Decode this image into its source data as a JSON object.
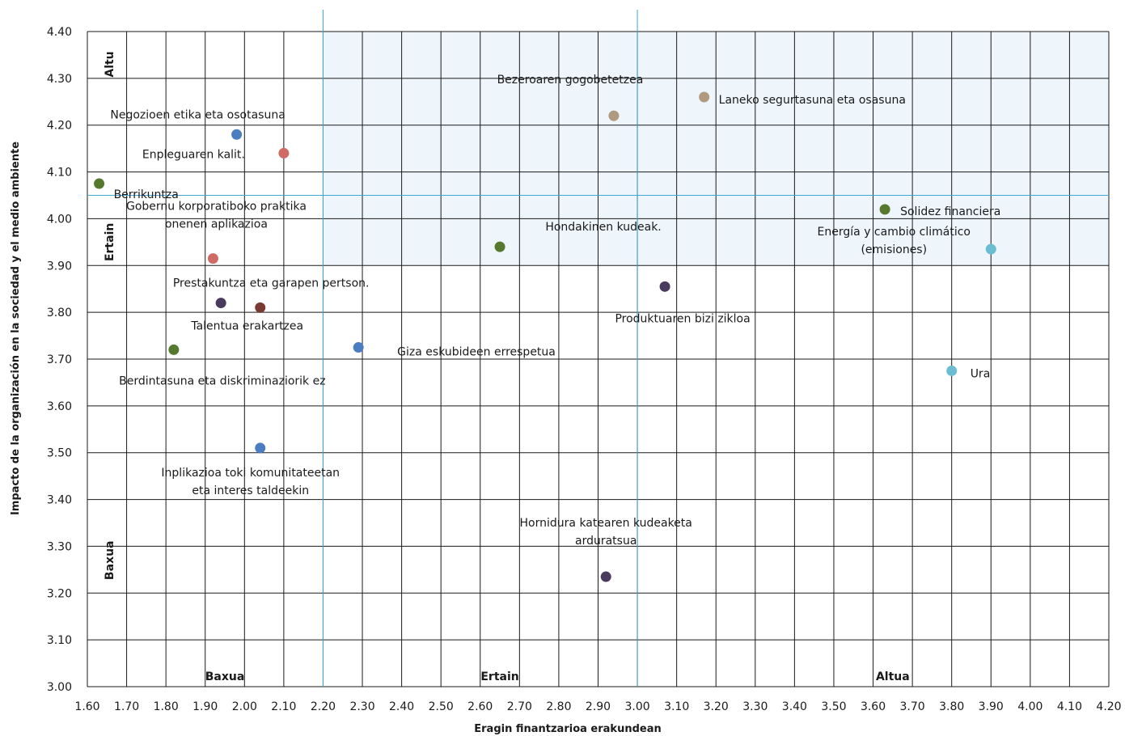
{
  "chart_data": {
    "type": "scatter",
    "xlabel": "Eragin finantzarioa erakundean",
    "ylabel": "Impacto de la organización en la sociedad y el medio ambiente",
    "xlim": [
      1.6,
      4.2
    ],
    "ylim": [
      3.0,
      4.4
    ],
    "x_ticks": [
      "1.60",
      "1.70",
      "1.80",
      "1.90",
      "2.00",
      "2.10",
      "2.20",
      "2.30",
      "2.40",
      "2.50",
      "2.60",
      "2.70",
      "2.80",
      "2.90",
      "3.00",
      "3.10",
      "3.20",
      "3.30",
      "3.40",
      "3.50",
      "3.60",
      "3.70",
      "3.80",
      "3.90",
      "4.00",
      "4.10",
      "4.20"
    ],
    "y_ticks": [
      "3.00",
      "3.10",
      "3.20",
      "3.30",
      "3.40",
      "3.50",
      "3.60",
      "3.70",
      "3.80",
      "3.90",
      "4.00",
      "4.10",
      "4.20",
      "4.30",
      "4.40"
    ],
    "grid": true,
    "x_dividers": [
      2.2,
      3.0
    ],
    "y_divider": 4.05,
    "highlight_region": {
      "x": [
        2.2,
        4.2
      ],
      "y": [
        3.9,
        4.4
      ],
      "color": "#eef5fb"
    },
    "x_zones": [
      {
        "label": "Baxua",
        "x": 1.95
      },
      {
        "label": "Ertain",
        "x": 2.65
      },
      {
        "label": "Altua",
        "x": 3.65
      }
    ],
    "y_zones": [
      {
        "label": "Altu",
        "y": 4.33
      },
      {
        "label": "Ertain",
        "y": 3.95
      },
      {
        "label": "Baxua",
        "y": 3.27
      }
    ],
    "points": [
      {
        "x": 1.98,
        "y": 4.18,
        "color": "#4a7ec0",
        "label_lines": [
          "Negozioen etika eta osotasuna"
        ]
      },
      {
        "x": 2.1,
        "y": 4.14,
        "color": "#d06a64",
        "label_lines": [
          "Enpleguaren kalit."
        ]
      },
      {
        "x": 1.63,
        "y": 4.075,
        "color": "#557a2e",
        "label_lines": [
          "Berrikuntza"
        ]
      },
      {
        "x": 1.92,
        "y": 3.915,
        "color": "#d06a64",
        "label_lines": [
          "Gobernu korporatiboko praktika",
          "onenen aplikazioa"
        ]
      },
      {
        "x": 1.94,
        "y": 3.82,
        "color": "#4a3a5e",
        "label_lines": [
          "Prestakuntza eta garapen pertson."
        ]
      },
      {
        "x": 2.04,
        "y": 3.81,
        "color": "#7a3a34",
        "label_lines": [
          "Talentua erakartzea"
        ]
      },
      {
        "x": 1.82,
        "y": 3.72,
        "color": "#557a2e",
        "label_lines": [
          "Berdintasuna eta diskriminaziorik ez"
        ]
      },
      {
        "x": 2.29,
        "y": 3.725,
        "color": "#4a7ec0",
        "label_lines": [
          "Giza eskubideen errespetua"
        ]
      },
      {
        "x": 2.04,
        "y": 3.51,
        "color": "#4a7ec0",
        "label_lines": [
          "Inplikazioa toki komunitateetan",
          "eta interes taldeekin"
        ]
      },
      {
        "x": 2.94,
        "y": 4.22,
        "color": "#b09a80",
        "label_lines": [
          "Bezeroaren gogobetetzea"
        ]
      },
      {
        "x": 3.17,
        "y": 4.26,
        "color": "#b09a80",
        "label_lines": [
          "Laneko segurtasuna eta osasuna"
        ]
      },
      {
        "x": 2.65,
        "y": 3.94,
        "color": "#557a2e",
        "label_lines": [
          "Hondakinen kudeak."
        ]
      },
      {
        "x": 3.07,
        "y": 3.855,
        "color": "#4a3a5e",
        "label_lines": [
          "Produktuaren bizi zikloa"
        ]
      },
      {
        "x": 2.92,
        "y": 3.235,
        "color": "#4a3a5e",
        "label_lines": [
          "Hornidura katearen kudeaketa",
          "arduratsua"
        ]
      },
      {
        "x": 3.63,
        "y": 4.02,
        "color": "#557a2e",
        "label_lines": [
          "Solidez financiera"
        ]
      },
      {
        "x": 3.9,
        "y": 3.935,
        "color": "#6bbdd1",
        "label_lines": [
          "Energía y cambio climático",
          "(emisiones)"
        ]
      },
      {
        "x": 3.8,
        "y": 3.675,
        "color": "#6bbdd1",
        "label_lines": [
          "Ura"
        ]
      }
    ]
  }
}
